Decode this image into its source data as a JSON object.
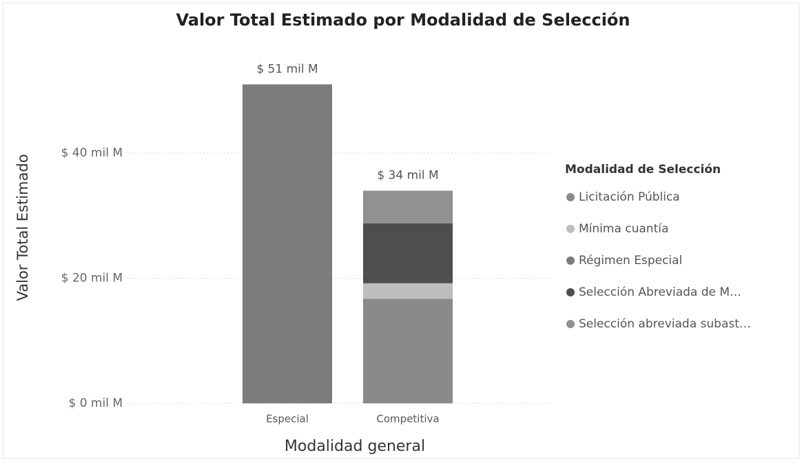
{
  "chart_data": {
    "type": "stacked-bar",
    "title": "Valor Total Estimado por Modalidad de Selección",
    "x_label": "Modalidad general",
    "y_label": "Valor Total Estimado",
    "legend_title": "Modalidad de Selección",
    "legend": "right",
    "grid": true,
    "categories": [
      "Especial",
      "Competitiva"
    ],
    "series": [
      {
        "name": "Licitación Pública",
        "color": "#8a8a8a",
        "values": [
          null,
          16.7
        ]
      },
      {
        "name": "Mínima cuantía",
        "color": "#bdbdbd",
        "values": [
          null,
          2.5
        ]
      },
      {
        "name": "Régimen Especial",
        "color": "#7c7c7c",
        "values": [
          51,
          null
        ]
      },
      {
        "name": "Selección Abreviada de M…",
        "color": "#4e4e4e",
        "values": [
          null,
          9.6
        ]
      },
      {
        "name": "Selección abreviada subast…",
        "color": "#919191",
        "values": [
          null,
          5.2
        ]
      }
    ],
    "totals": {
      "values": [
        51,
        34
      ],
      "value_labels": [
        "$ 51 mil M",
        "$ 34 mil M"
      ]
    },
    "ylim": [
      0,
      56
    ],
    "yticks": [
      {
        "value": 0,
        "label": "$ 0 mil M"
      },
      {
        "value": 20,
        "label": "$ 20 mil M"
      },
      {
        "value": 40,
        "label": "$ 40 mil M"
      }
    ]
  }
}
